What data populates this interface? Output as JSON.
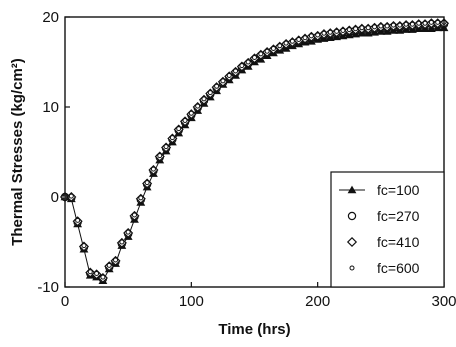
{
  "chart_data": {
    "type": "scatter",
    "title": "",
    "xlabel": "Time (hrs)",
    "ylabel": "Thermal Stresses (kg/cm²)",
    "xlim": [
      0,
      300
    ],
    "ylim": [
      -10,
      20
    ],
    "x_ticks": [
      0,
      100,
      200,
      300
    ],
    "y_ticks": [
      -10,
      0,
      10,
      20
    ],
    "grid": false,
    "legend_position": "bottom-right",
    "series": [
      {
        "name": "fc=100",
        "marker": "triangle",
        "x": [
          0,
          5,
          10,
          15,
          20,
          25,
          30,
          35,
          40,
          45,
          50,
          55,
          60,
          65,
          70,
          75,
          80,
          85,
          90,
          95,
          100,
          105,
          110,
          115,
          120,
          125,
          130,
          135,
          140,
          145,
          150,
          155,
          160,
          165,
          170,
          175,
          180,
          185,
          190,
          195,
          200,
          205,
          210,
          215,
          220,
          225,
          230,
          235,
          240,
          245,
          250,
          255,
          260,
          265,
          270,
          275,
          280,
          285,
          290,
          295,
          300
        ],
        "y": [
          0,
          -0.2,
          -3,
          -5.8,
          -8.7,
          -8.9,
          -9.3,
          -8,
          -7.4,
          -5.4,
          -4.4,
          -2.5,
          -0.6,
          1.1,
          2.6,
          4.1,
          5.1,
          6.1,
          7.1,
          8,
          8.8,
          9.6,
          10.4,
          11.1,
          11.8,
          12.5,
          13,
          13.5,
          14.1,
          14.5,
          15,
          15.3,
          15.7,
          16,
          16.3,
          16.5,
          16.8,
          17,
          17.2,
          17.3,
          17.5,
          17.6,
          17.7,
          17.8,
          17.9,
          18,
          18.1,
          18.2,
          18.2,
          18.3,
          18.4,
          18.4,
          18.5,
          18.5,
          18.6,
          18.6,
          18.7,
          18.7,
          18.7,
          18.8,
          18.8
        ]
      },
      {
        "name": "fc=270",
        "marker": "circle",
        "x": [
          0,
          5,
          10,
          15,
          20,
          25,
          30,
          35,
          40,
          45,
          50,
          55,
          60,
          65,
          70,
          75,
          80,
          85,
          90,
          95,
          100,
          105,
          110,
          115,
          120,
          125,
          130,
          135,
          140,
          145,
          150,
          155,
          160,
          165,
          170,
          175,
          180,
          185,
          190,
          195,
          200,
          205,
          210,
          215,
          220,
          225,
          230,
          235,
          240,
          245,
          250,
          255,
          260,
          265,
          270,
          275,
          280,
          285,
          290,
          295,
          300
        ],
        "y": [
          0,
          -0.1,
          -2.8,
          -5.6,
          -8.5,
          -8.7,
          -9.1,
          -7.8,
          -7.2,
          -5.2,
          -4.1,
          -2.2,
          -0.3,
          1.4,
          2.9,
          4.4,
          5.4,
          6.4,
          7.4,
          8.3,
          9.1,
          9.9,
          10.7,
          11.4,
          12.1,
          12.7,
          13.3,
          13.8,
          14.4,
          14.8,
          15.3,
          15.7,
          16,
          16.3,
          16.6,
          16.9,
          17.1,
          17.3,
          17.5,
          17.7,
          17.8,
          18,
          18.1,
          18.2,
          18.3,
          18.4,
          18.5,
          18.6,
          18.6,
          18.7,
          18.8,
          18.8,
          18.9,
          18.9,
          19,
          19,
          19.1,
          19.1,
          19.2,
          19.2,
          19.2
        ]
      },
      {
        "name": "fc=410",
        "marker": "diamond",
        "x": [
          0,
          5,
          10,
          15,
          20,
          25,
          30,
          35,
          40,
          45,
          50,
          55,
          60,
          65,
          70,
          75,
          80,
          85,
          90,
          95,
          100,
          105,
          110,
          115,
          120,
          125,
          130,
          135,
          140,
          145,
          150,
          155,
          160,
          165,
          170,
          175,
          180,
          185,
          190,
          195,
          200,
          205,
          210,
          215,
          220,
          225,
          230,
          235,
          240,
          245,
          250,
          255,
          260,
          265,
          270,
          275,
          280,
          285,
          290,
          295,
          300
        ],
        "y": [
          0,
          0,
          -2.7,
          -5.5,
          -8.4,
          -8.6,
          -9,
          -7.7,
          -7.1,
          -5.1,
          -4,
          -2.1,
          -0.2,
          1.5,
          3,
          4.5,
          5.5,
          6.5,
          7.5,
          8.4,
          9.2,
          10,
          10.8,
          11.5,
          12.2,
          12.8,
          13.4,
          13.9,
          14.5,
          14.9,
          15.4,
          15.8,
          16.1,
          16.4,
          16.7,
          17,
          17.2,
          17.4,
          17.6,
          17.8,
          17.9,
          18.1,
          18.2,
          18.3,
          18.4,
          18.5,
          18.6,
          18.7,
          18.7,
          18.8,
          18.9,
          18.9,
          19,
          19,
          19.1,
          19.1,
          19.2,
          19.2,
          19.3,
          19.3,
          19.3
        ]
      },
      {
        "name": "fc=600",
        "marker": "small-circle",
        "x": [
          0,
          5,
          10,
          15,
          20,
          25,
          30,
          35,
          40,
          45,
          50,
          55,
          60,
          65,
          70,
          75,
          80,
          85,
          90,
          95,
          100,
          105,
          110,
          115,
          120,
          125,
          130,
          135,
          140,
          145,
          150,
          155,
          160,
          165,
          170,
          175,
          180,
          185,
          190,
          195,
          200,
          205,
          210,
          215,
          220,
          225,
          230,
          235,
          240,
          245,
          250,
          255,
          260,
          265,
          270,
          275,
          280,
          285,
          290,
          295,
          300
        ],
        "y": [
          0,
          0.1,
          -2.6,
          -5.4,
          -8.3,
          -8.5,
          -8.9,
          -7.6,
          -7,
          -5,
          -3.9,
          -2,
          -0.1,
          1.6,
          3.1,
          4.6,
          5.6,
          6.6,
          7.6,
          8.5,
          9.3,
          10.1,
          10.9,
          11.6,
          12.3,
          12.9,
          13.5,
          14,
          14.6,
          15,
          15.5,
          15.9,
          16.2,
          16.5,
          16.8,
          17.1,
          17.3,
          17.5,
          17.7,
          17.9,
          18,
          18.2,
          18.3,
          18.4,
          18.5,
          18.6,
          18.7,
          18.8,
          18.8,
          18.9,
          19,
          19,
          19.1,
          19.1,
          19.2,
          19.2,
          19.3,
          19.3,
          19.4,
          19.4,
          19.4
        ]
      }
    ]
  }
}
